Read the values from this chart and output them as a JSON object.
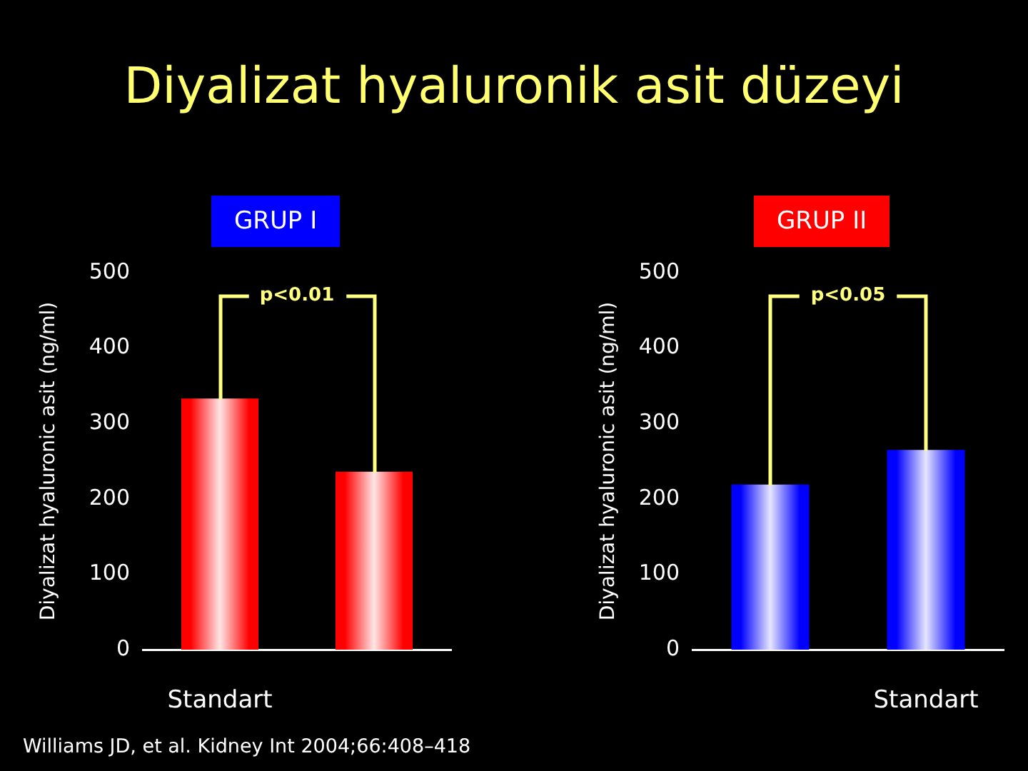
{
  "chart_data": [
    {
      "type": "other",
      "title": "Diyalizat hyaluronik asit düzeyi",
      "annotations": [
        "Williams JD, et al. Kidney Int 2004;66:408–418"
      ]
    },
    {
      "type": "bar",
      "title": "GRUP I",
      "ylabel": "Diyalizat hyaluronic asit (ng/ml)",
      "categories": [
        "Standart",
        null
      ],
      "values": [
        333,
        236
      ],
      "color": "#ff0000",
      "ylim": [
        0,
        500
      ],
      "yticks": [
        0,
        100,
        200,
        300,
        400,
        500
      ],
      "annotations": [
        "p<0.01"
      ]
    },
    {
      "type": "bar",
      "title": "GRUP II",
      "ylabel": "Diyalizat hyaluronic asit (ng/ml)",
      "categories": [
        null,
        "Standart"
      ],
      "values": [
        219,
        265
      ],
      "color": "#0000ff",
      "ylim": [
        0,
        500
      ],
      "yticks": [
        0,
        100,
        200,
        300,
        400,
        500
      ],
      "annotations": [
        "p<0.05"
      ]
    }
  ]
}
